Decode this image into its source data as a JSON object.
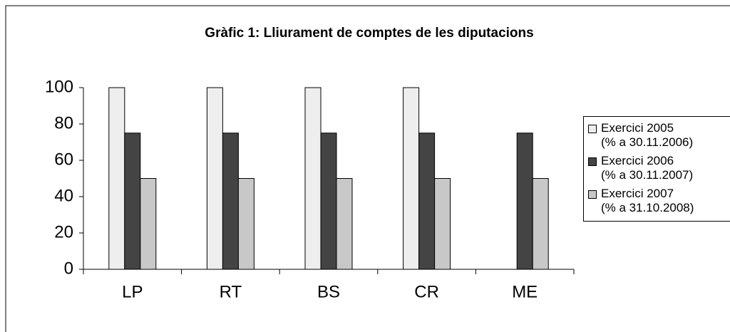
{
  "chart_data": {
    "type": "bar",
    "title": "Gràfic 1: Lliurament de comptes de les diputacions",
    "categories": [
      "LP",
      "RT",
      "BS",
      "CR",
      "ME"
    ],
    "series": [
      {
        "name": "Exercici 2005\n(% a 30.11.2006)",
        "color": "#eeeeee",
        "values": [
          100,
          100,
          100,
          100,
          null
        ]
      },
      {
        "name": "Exercici 2006\n(% a 30.11.2007)",
        "color": "#444444",
        "values": [
          75,
          75,
          75,
          75,
          75
        ]
      },
      {
        "name": "Exercici 2007\n(% a 31.10.2008)",
        "color": "#c8c8c8",
        "values": [
          50,
          50,
          50,
          50,
          50
        ]
      }
    ],
    "ylim": [
      0,
      100
    ],
    "yticks": [
      0,
      20,
      40,
      60,
      80,
      100
    ],
    "legend": "right"
  }
}
